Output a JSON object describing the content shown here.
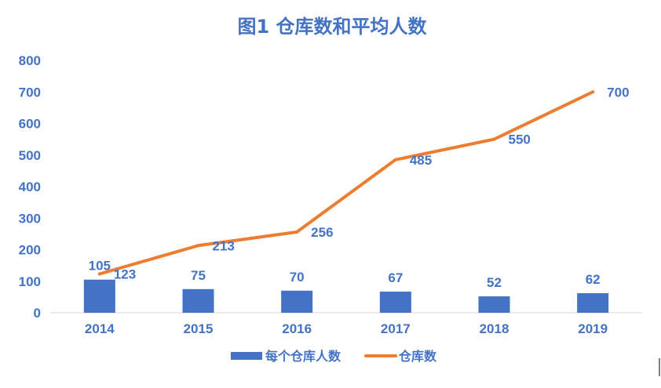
{
  "chart_data": {
    "type": "bar+line",
    "title": "图1 仓库数和平均人数",
    "categories": [
      "2014",
      "2015",
      "2016",
      "2017",
      "2018",
      "2019"
    ],
    "series": [
      {
        "name": "每个仓库人数",
        "type": "bar",
        "values": [
          105,
          75,
          70,
          67,
          52,
          62
        ],
        "color": "#4472C4"
      },
      {
        "name": "仓库数",
        "type": "line",
        "values": [
          123,
          213,
          256,
          485,
          550,
          700
        ],
        "color": "#ED7D31"
      }
    ],
    "yticks": [
      "0",
      "100",
      "200",
      "300",
      "400",
      "500",
      "600",
      "700",
      "800"
    ],
    "ylim": [
      0,
      800
    ],
    "grid": false,
    "legend_position": "bottom",
    "text_color": "#4472C4"
  }
}
